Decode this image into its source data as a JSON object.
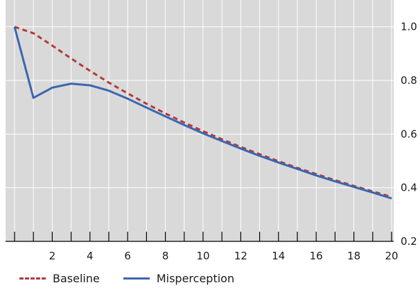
{
  "chart_data": {
    "type": "line",
    "x_ticks": [
      2,
      4,
      6,
      8,
      10,
      12,
      14,
      16,
      18,
      20
    ],
    "y_ticks": [
      0.2,
      0.4,
      0.6,
      0.8,
      1.0
    ],
    "y_tick_labels": [
      "0.2",
      "0.4",
      "0.6",
      "0.8",
      "1.0"
    ],
    "xlim": [
      0,
      20
    ],
    "ylim": [
      0.2,
      1.1
    ],
    "y_axis_side": "right",
    "grid": true,
    "legend_position": "bottom",
    "background_color": "#d9d9d9",
    "series": [
      {
        "name": "Baseline",
        "color": "#b23a3a",
        "style": "dashed",
        "x": [
          0,
          1,
          2,
          3,
          4,
          5,
          6,
          7,
          8,
          9,
          10,
          11,
          12,
          13,
          14,
          15,
          16,
          17,
          18,
          19,
          20
        ],
        "values": [
          1.0,
          0.976,
          0.93,
          0.882,
          0.836,
          0.792,
          0.752,
          0.713,
          0.677,
          0.643,
          0.611,
          0.581,
          0.552,
          0.525,
          0.499,
          0.474,
          0.451,
          0.428,
          0.407,
          0.386,
          0.366
        ]
      },
      {
        "name": "Misperception",
        "color": "#3a66b0",
        "style": "solid",
        "x": [
          0,
          1,
          2,
          3,
          4,
          5,
          6,
          7,
          8,
          9,
          10,
          11,
          12,
          13,
          14,
          15,
          16,
          17,
          18,
          19,
          20
        ],
        "values": [
          1.0,
          0.735,
          0.773,
          0.788,
          0.782,
          0.762,
          0.732,
          0.699,
          0.666,
          0.634,
          0.603,
          0.574,
          0.546,
          0.519,
          0.494,
          0.47,
          0.446,
          0.424,
          0.403,
          0.382,
          0.36
        ]
      }
    ]
  }
}
